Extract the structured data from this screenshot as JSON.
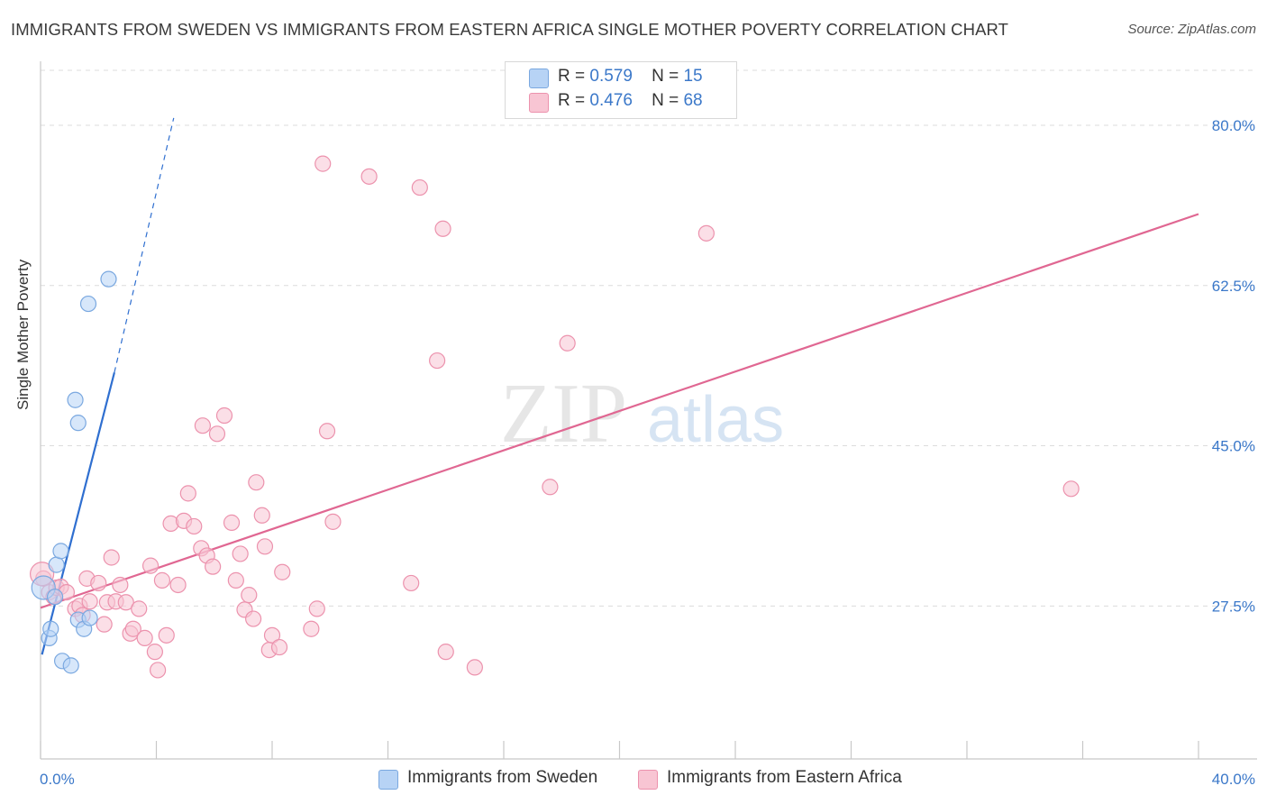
{
  "title": "IMMIGRANTS FROM SWEDEN VS IMMIGRANTS FROM EASTERN AFRICA SINGLE MOTHER POVERTY CORRELATION CHART",
  "source": "Source: ZipAtlas.com",
  "watermark": {
    "zip": "ZIP",
    "atlas": "atlas"
  },
  "legend": {
    "r_label": "R =",
    "n_label": "N =",
    "sweden": {
      "r": "0.579",
      "n": "15"
    },
    "eafrica": {
      "r": "0.476",
      "n": "68"
    }
  },
  "colors": {
    "sweden_fill": "#b7d3f5",
    "sweden_stroke": "#7aa8e0",
    "sweden_line": "#2f6fd0",
    "eafrica_fill": "#f8c5d3",
    "eafrica_stroke": "#ec92ad",
    "eafrica_line": "#e06792",
    "tick_text": "#3b78c9"
  },
  "chart_data": {
    "type": "scatter",
    "title": "IMMIGRANTS FROM SWEDEN VS IMMIGRANTS FROM EASTERN AFRICA SINGLE MOTHER POVERTY CORRELATION CHART",
    "xlabel": "",
    "ylabel": "Single Mother Poverty",
    "xlim": [
      0,
      40
    ],
    "ylim": [
      10.8,
      86
    ],
    "x_tick_labels": [
      "0.0%",
      "40.0%"
    ],
    "y_ticks": [
      27.5,
      45.0,
      62.5,
      80.0
    ],
    "y_tick_labels": [
      "27.5%",
      "45.0%",
      "62.5%",
      "80.0%"
    ],
    "grid": true,
    "legend_position": "top-center",
    "series": [
      {
        "name": "Immigrants from Sweden",
        "r": 0.579,
        "n": 15,
        "points": [
          [
            0.1,
            29.5
          ],
          [
            0.3,
            24.0
          ],
          [
            0.35,
            25.0
          ],
          [
            0.55,
            32.0
          ],
          [
            0.7,
            33.5
          ],
          [
            0.5,
            28.5
          ],
          [
            0.75,
            21.5
          ],
          [
            1.05,
            21.0
          ],
          [
            1.3,
            26.0
          ],
          [
            1.5,
            25.0
          ],
          [
            1.7,
            26.2
          ],
          [
            1.3,
            47.5
          ],
          [
            1.2,
            50.0
          ],
          [
            1.65,
            60.5
          ],
          [
            2.35,
            63.2
          ]
        ],
        "trend": {
          "x": [
            0.05,
            2.55
          ],
          "y": [
            22.2,
            53.0
          ]
        },
        "trend_dashed": {
          "x": [
            2.55,
            4.6
          ],
          "y": [
            53.0,
            80.8
          ]
        }
      },
      {
        "name": "Immigrants from Eastern Africa",
        "r": 0.476,
        "n": 68,
        "points": [
          [
            0.1,
            30.5
          ],
          [
            0.3,
            29.0
          ],
          [
            0.45,
            28.5
          ],
          [
            0.55,
            29.5
          ],
          [
            0.7,
            29.6
          ],
          [
            0.9,
            29.0
          ],
          [
            1.2,
            27.2
          ],
          [
            1.35,
            27.5
          ],
          [
            1.45,
            26.5
          ],
          [
            1.6,
            30.5
          ],
          [
            1.7,
            28.0
          ],
          [
            2.0,
            30.0
          ],
          [
            2.2,
            25.5
          ],
          [
            2.3,
            27.9
          ],
          [
            2.45,
            32.8
          ],
          [
            2.6,
            28.0
          ],
          [
            2.75,
            29.8
          ],
          [
            2.95,
            27.9
          ],
          [
            3.1,
            24.5
          ],
          [
            3.2,
            25.0
          ],
          [
            3.4,
            27.2
          ],
          [
            3.6,
            24.0
          ],
          [
            3.8,
            31.9
          ],
          [
            3.95,
            22.5
          ],
          [
            4.05,
            20.5
          ],
          [
            4.2,
            30.3
          ],
          [
            4.35,
            24.3
          ],
          [
            4.5,
            36.5
          ],
          [
            4.75,
            29.8
          ],
          [
            4.95,
            36.8
          ],
          [
            5.1,
            39.8
          ],
          [
            5.3,
            36.2
          ],
          [
            5.55,
            33.8
          ],
          [
            5.6,
            47.2
          ],
          [
            5.75,
            33.0
          ],
          [
            5.95,
            31.8
          ],
          [
            6.1,
            46.3
          ],
          [
            6.35,
            48.3
          ],
          [
            6.6,
            36.6
          ],
          [
            6.75,
            30.3
          ],
          [
            6.9,
            33.2
          ],
          [
            7.05,
            27.1
          ],
          [
            7.2,
            28.7
          ],
          [
            7.35,
            26.1
          ],
          [
            7.45,
            41.0
          ],
          [
            7.65,
            37.4
          ],
          [
            7.75,
            34.0
          ],
          [
            7.9,
            22.7
          ],
          [
            8.0,
            24.3
          ],
          [
            8.25,
            23.0
          ],
          [
            8.35,
            31.2
          ],
          [
            9.35,
            25.0
          ],
          [
            9.55,
            27.2
          ],
          [
            9.9,
            46.6
          ],
          [
            10.1,
            36.7
          ],
          [
            9.75,
            75.8
          ],
          [
            11.35,
            74.4
          ],
          [
            12.8,
            30.0
          ],
          [
            13.1,
            73.2
          ],
          [
            13.7,
            54.3
          ],
          [
            13.9,
            68.7
          ],
          [
            14.0,
            22.5
          ],
          [
            15.0,
            20.8
          ],
          [
            17.6,
            40.5
          ],
          [
            18.2,
            56.2
          ],
          [
            23.0,
            68.2
          ],
          [
            35.6,
            40.3
          ],
          [
            0.05,
            31.0
          ]
        ],
        "trend": {
          "x": [
            0.0,
            40.0
          ],
          "y": [
            27.3,
            70.3
          ]
        }
      }
    ]
  }
}
